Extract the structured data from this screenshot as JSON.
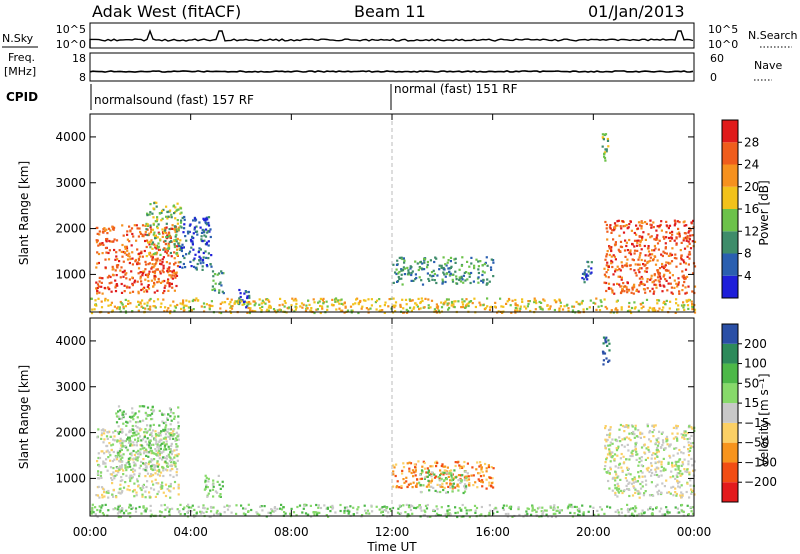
{
  "header": {
    "site": "Adak West (fitACF)",
    "beam": "Beam 11",
    "date": "01/Jan/2013"
  },
  "colors": {
    "gap_line": "#bbbbbb",
    "power_scale": [
      "#1f1fd9",
      "#2a5fb0",
      "#3e8c6a",
      "#6cc24a",
      "#f2c21b",
      "#f6911e",
      "#ef5d1c",
      "#e01b1b"
    ],
    "velocity_scale": [
      "#e31a1c",
      "#f24d13",
      "#f7941d",
      "#fbd065",
      "#c8c8c8",
      "#87d96a",
      "#4db848",
      "#2d8a5a",
      "#2a4fa6"
    ]
  },
  "top_panels": {
    "nsky": {
      "left_label": "N.Sky",
      "left_ticks": [
        "10^5",
        "10^0"
      ],
      "right_label": "N.Search",
      "right_ticks": [
        "10^5",
        "10^0"
      ]
    },
    "freq": {
      "left_label_1": "Freq.",
      "left_label_2": "[MHz]",
      "left_ticks": [
        "18",
        "8"
      ],
      "right_label": "Nave",
      "right_ticks": [
        "60",
        "0"
      ]
    },
    "cpid": {
      "label": "CPID",
      "segments": [
        {
          "text": "normalsound (fast) 157 RF",
          "start_hour": 0
        },
        {
          "text": "normal (fast) 151 RF",
          "start_hour": 12
        }
      ]
    }
  },
  "chart_data": [
    {
      "type": "heatmap",
      "name": "power",
      "ylabel": "Slant Range [km]",
      "y_ticks": [
        "1000",
        "2000",
        "3000",
        "4000"
      ],
      "y_tick_values": [
        1000,
        2000,
        3000,
        4000
      ],
      "ylim": [
        180,
        4500
      ],
      "xlim_hours": [
        0,
        24
      ],
      "colorbar": {
        "label": "Power [dB]",
        "ticks": [
          "4",
          "8",
          "12",
          "16",
          "20",
          "24",
          "28"
        ],
        "range": [
          0,
          32
        ]
      },
      "echo_regions": [
        {
          "t0": 0.2,
          "t1": 3.5,
          "r0": 600,
          "r1": 2100,
          "level": 6
        },
        {
          "t0": 2.2,
          "t1": 3.6,
          "r0": 1400,
          "r1": 2600,
          "level": 3
        },
        {
          "t0": 3.5,
          "t1": 4.8,
          "r0": 1100,
          "r1": 2300,
          "level": 1
        },
        {
          "t0": 4.8,
          "t1": 5.3,
          "r0": 600,
          "r1": 1100,
          "level": 2
        },
        {
          "t0": 5.8,
          "t1": 6.3,
          "r0": 300,
          "r1": 700,
          "level": 1
        },
        {
          "t0": 12.0,
          "t1": 16.0,
          "r0": 800,
          "r1": 1400,
          "level": 2
        },
        {
          "t0": 19.5,
          "t1": 19.9,
          "r0": 800,
          "r1": 1300,
          "level": 1
        },
        {
          "t0": 20.3,
          "t1": 20.6,
          "r0": 3500,
          "r1": 4100,
          "level": 3
        },
        {
          "t0": 20.4,
          "t1": 24.0,
          "r0": 600,
          "r1": 2200,
          "level": 6
        },
        {
          "t0": 0.0,
          "t1": 24.0,
          "r0": 180,
          "r1": 500,
          "level": 4
        }
      ]
    },
    {
      "type": "heatmap",
      "name": "velocity",
      "ylabel": "Slant Range [km]",
      "y_ticks": [
        "1000",
        "2000",
        "3000",
        "4000"
      ],
      "y_tick_values": [
        1000,
        2000,
        3000,
        4000
      ],
      "ylim": [
        180,
        4500
      ],
      "xlim_hours": [
        0,
        24
      ],
      "colorbar": {
        "label": "Velocity [m s⁻¹]",
        "ticks": [
          "200",
          "100",
          "50",
          "15",
          "−15",
          "−50",
          "−100",
          "−200"
        ],
        "range": [
          -250,
          250
        ]
      },
      "echo_regions": [
        {
          "t0": 0.2,
          "t1": 3.5,
          "r0": 600,
          "r1": 2100,
          "level": 4
        },
        {
          "t0": 1.0,
          "t1": 3.5,
          "r0": 1200,
          "r1": 2600,
          "level": 5
        },
        {
          "t0": 4.5,
          "t1": 5.3,
          "r0": 600,
          "r1": 1100,
          "level": 5
        },
        {
          "t0": 12.0,
          "t1": 16.0,
          "r0": 800,
          "r1": 1400,
          "level": 2
        },
        {
          "t0": 13.0,
          "t1": 15.0,
          "r0": 700,
          "r1": 1200,
          "level": 5
        },
        {
          "t0": 20.3,
          "t1": 20.6,
          "r0": 3500,
          "r1": 4100,
          "level": 8
        },
        {
          "t0": 20.4,
          "t1": 24.0,
          "r0": 600,
          "r1": 2200,
          "level": 4
        },
        {
          "t0": 0.0,
          "t1": 24.0,
          "r0": 180,
          "r1": 450,
          "level": 5
        }
      ]
    }
  ],
  "x_axis": {
    "ticks": [
      "00:00",
      "04:00",
      "08:00",
      "12:00",
      "16:00",
      "20:00",
      "00:00"
    ],
    "tick_hours": [
      0,
      4,
      8,
      12,
      16,
      20,
      24
    ],
    "label": "Time UT"
  }
}
